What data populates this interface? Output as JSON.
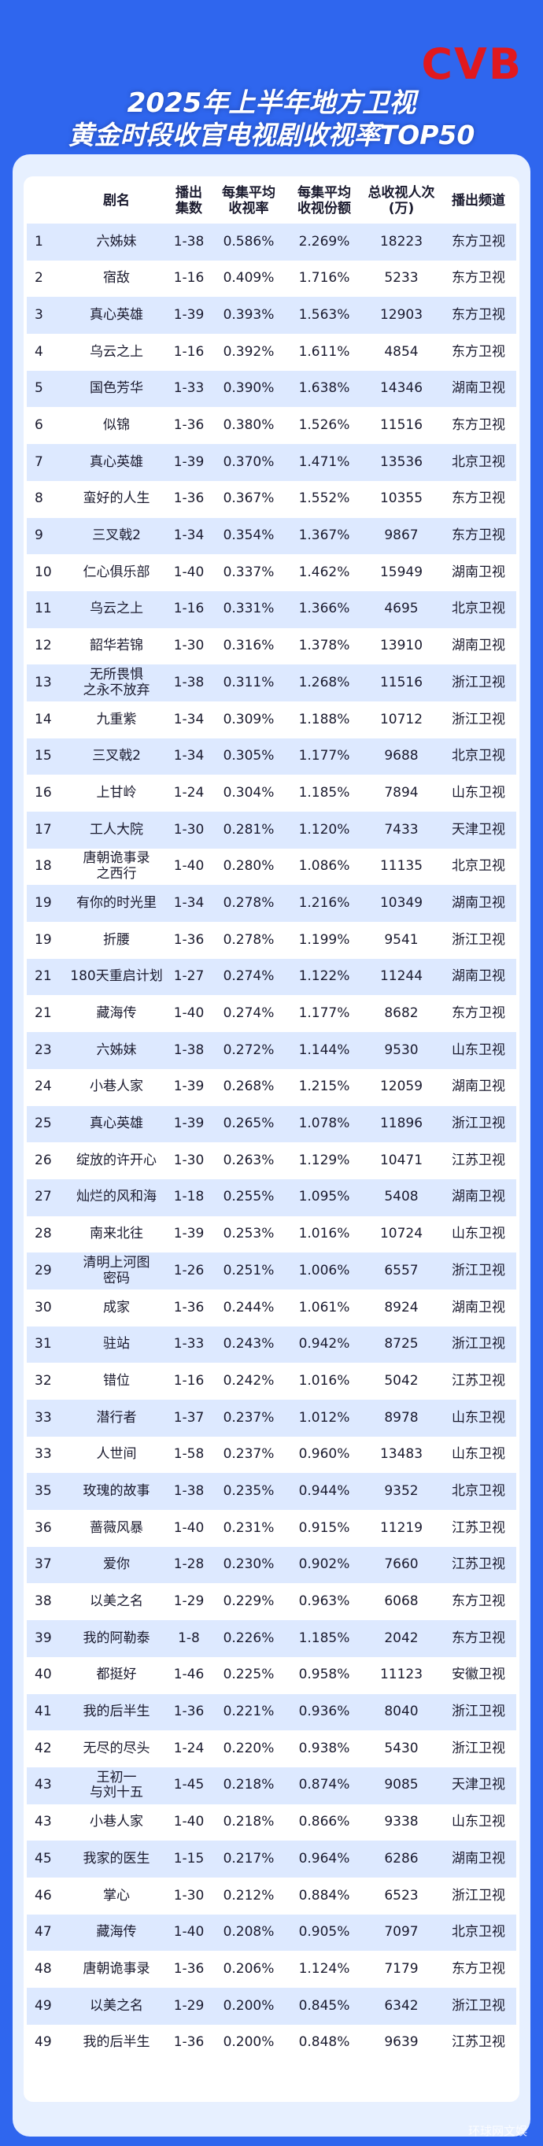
{
  "header": {
    "logo": "CVB",
    "title_line1": "2025年上半年地方卫视",
    "title_line2": "黄金时段收官电视剧收视率TOP50"
  },
  "table": {
    "columns": [
      "剧名",
      "播出\n集数",
      "每集平均\n收视率",
      "每集平均\n收视份额",
      "总收视人次\n(万)",
      "播出频道"
    ],
    "rows": [
      [
        "1",
        "六姊妹",
        "1-38",
        "0.586%",
        "2.269%",
        "18223",
        "东方卫视"
      ],
      [
        "2",
        "宿敌",
        "1-16",
        "0.409%",
        "1.716%",
        "5233",
        "东方卫视"
      ],
      [
        "3",
        "真心英雄",
        "1-39",
        "0.393%",
        "1.563%",
        "12903",
        "东方卫视"
      ],
      [
        "4",
        "乌云之上",
        "1-16",
        "0.392%",
        "1.611%",
        "4854",
        "东方卫视"
      ],
      [
        "5",
        "国色芳华",
        "1-33",
        "0.390%",
        "1.638%",
        "14346",
        "湖南卫视"
      ],
      [
        "6",
        "似锦",
        "1-36",
        "0.380%",
        "1.526%",
        "11516",
        "东方卫视"
      ],
      [
        "7",
        "真心英雄",
        "1-39",
        "0.370%",
        "1.471%",
        "13536",
        "北京卫视"
      ],
      [
        "8",
        "蛮好的人生",
        "1-36",
        "0.367%",
        "1.552%",
        "10355",
        "东方卫视"
      ],
      [
        "9",
        "三叉戟2",
        "1-34",
        "0.354%",
        "1.367%",
        "9867",
        "东方卫视"
      ],
      [
        "10",
        "仁心俱乐部",
        "1-40",
        "0.337%",
        "1.462%",
        "15949",
        "湖南卫视"
      ],
      [
        "11",
        "乌云之上",
        "1-16",
        "0.331%",
        "1.366%",
        "4695",
        "北京卫视"
      ],
      [
        "12",
        "韶华若锦",
        "1-30",
        "0.316%",
        "1.378%",
        "13910",
        "湖南卫视"
      ],
      [
        "13",
        "无所畏惧\n之永不放弃",
        "1-38",
        "0.311%",
        "1.268%",
        "11516",
        "浙江卫视"
      ],
      [
        "14",
        "九重紫",
        "1-34",
        "0.309%",
        "1.188%",
        "10712",
        "浙江卫视"
      ],
      [
        "15",
        "三叉戟2",
        "1-34",
        "0.305%",
        "1.177%",
        "9688",
        "北京卫视"
      ],
      [
        "16",
        "上甘岭",
        "1-24",
        "0.304%",
        "1.185%",
        "7894",
        "山东卫视"
      ],
      [
        "17",
        "工人大院",
        "1-30",
        "0.281%",
        "1.120%",
        "7433",
        "天津卫视"
      ],
      [
        "18",
        "唐朝诡事录\n之西行",
        "1-40",
        "0.280%",
        "1.086%",
        "11135",
        "北京卫视"
      ],
      [
        "19",
        "有你的时光里",
        "1-34",
        "0.278%",
        "1.216%",
        "10349",
        "湖南卫视"
      ],
      [
        "19",
        "折腰",
        "1-36",
        "0.278%",
        "1.199%",
        "9541",
        "浙江卫视"
      ],
      [
        "21",
        "180天重启计划",
        "1-27",
        "0.274%",
        "1.122%",
        "11244",
        "湖南卫视"
      ],
      [
        "21",
        "藏海传",
        "1-40",
        "0.274%",
        "1.177%",
        "8682",
        "东方卫视"
      ],
      [
        "23",
        "六姊妹",
        "1-38",
        "0.272%",
        "1.144%",
        "9530",
        "山东卫视"
      ],
      [
        "24",
        "小巷人家",
        "1-39",
        "0.268%",
        "1.215%",
        "12059",
        "湖南卫视"
      ],
      [
        "25",
        "真心英雄",
        "1-39",
        "0.265%",
        "1.078%",
        "11896",
        "浙江卫视"
      ],
      [
        "26",
        "绽放的许开心",
        "1-30",
        "0.263%",
        "1.129%",
        "10471",
        "江苏卫视"
      ],
      [
        "27",
        "灿烂的风和海",
        "1-18",
        "0.255%",
        "1.095%",
        "5408",
        "湖南卫视"
      ],
      [
        "28",
        "南来北往",
        "1-39",
        "0.253%",
        "1.016%",
        "10724",
        "山东卫视"
      ],
      [
        "29",
        "清明上河图\n密码",
        "1-26",
        "0.251%",
        "1.006%",
        "6557",
        "浙江卫视"
      ],
      [
        "30",
        "成家",
        "1-36",
        "0.244%",
        "1.061%",
        "8924",
        "湖南卫视"
      ],
      [
        "31",
        "驻站",
        "1-33",
        "0.243%",
        "0.942%",
        "8725",
        "浙江卫视"
      ],
      [
        "32",
        "错位",
        "1-16",
        "0.242%",
        "1.016%",
        "5042",
        "江苏卫视"
      ],
      [
        "33",
        "潜行者",
        "1-37",
        "0.237%",
        "1.012%",
        "8978",
        "山东卫视"
      ],
      [
        "33",
        "人世间",
        "1-58",
        "0.237%",
        "0.960%",
        "13483",
        "山东卫视"
      ],
      [
        "35",
        "玫瑰的故事",
        "1-38",
        "0.235%",
        "0.944%",
        "9352",
        "北京卫视"
      ],
      [
        "36",
        "蔷薇风暴",
        "1-40",
        "0.231%",
        "0.915%",
        "11219",
        "江苏卫视"
      ],
      [
        "37",
        "爱你",
        "1-28",
        "0.230%",
        "0.902%",
        "7660",
        "江苏卫视"
      ],
      [
        "38",
        "以美之名",
        "1-29",
        "0.229%",
        "0.963%",
        "6068",
        "东方卫视"
      ],
      [
        "39",
        "我的阿勒泰",
        "1-8",
        "0.226%",
        "1.185%",
        "2042",
        "东方卫视"
      ],
      [
        "40",
        "都挺好",
        "1-46",
        "0.225%",
        "0.958%",
        "11123",
        "安徽卫视"
      ],
      [
        "41",
        "我的后半生",
        "1-36",
        "0.221%",
        "0.936%",
        "8040",
        "浙江卫视"
      ],
      [
        "42",
        "无尽的尽头",
        "1-24",
        "0.220%",
        "0.938%",
        "5430",
        "浙江卫视"
      ],
      [
        "43",
        "王初一\n与刘十五",
        "1-45",
        "0.218%",
        "0.874%",
        "9085",
        "天津卫视"
      ],
      [
        "43",
        "小巷人家",
        "1-40",
        "0.218%",
        "0.866%",
        "9338",
        "山东卫视"
      ],
      [
        "45",
        "我家的医生",
        "1-15",
        "0.217%",
        "0.964%",
        "6286",
        "湖南卫视"
      ],
      [
        "46",
        "掌心",
        "1-30",
        "0.212%",
        "0.884%",
        "6523",
        "浙江卫视"
      ],
      [
        "47",
        "藏海传",
        "1-40",
        "0.208%",
        "0.905%",
        "7097",
        "北京卫视"
      ],
      [
        "48",
        "唐朝诡事录",
        "1-36",
        "0.206%",
        "1.124%",
        "7179",
        "东方卫视"
      ],
      [
        "49",
        "以美之名",
        "1-29",
        "0.200%",
        "0.845%",
        "6342",
        "浙江卫视"
      ],
      [
        "49",
        "我的后半生",
        "1-36",
        "0.200%",
        "0.848%",
        "9639",
        "江苏卫视"
      ]
    ]
  },
  "watermark": "环球网文娱",
  "colors": {
    "background": "#2f66ee",
    "panel": "#e7f0ff",
    "row_stripe": "#dde9ff",
    "logo": "#e0191e"
  }
}
